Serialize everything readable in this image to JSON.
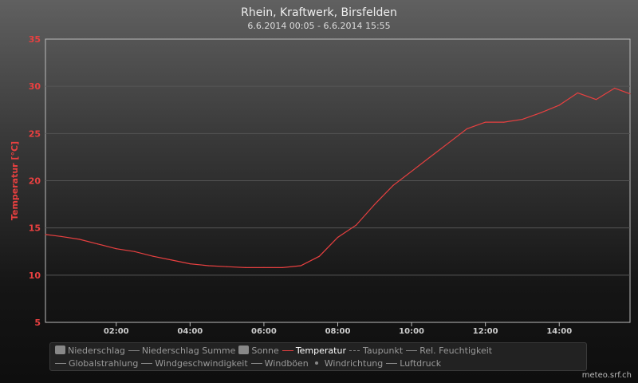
{
  "chart_data": {
    "type": "line",
    "title": "Rhein, Kraftwerk, Birsfelden",
    "subtitle": "6.6.2014 00:05 - 6.6.2014 15:55",
    "ylabel": "Temperatur [°C]",
    "ylim": [
      5,
      35
    ],
    "yticks": [
      "5",
      "10",
      "15",
      "20",
      "25",
      "30",
      "35"
    ],
    "xlim_hours": [
      0.083,
      15.917
    ],
    "xticks": [
      {
        "h": 2,
        "label": "02:00"
      },
      {
        "h": 4,
        "label": "04:00"
      },
      {
        "h": 6,
        "label": "06:00"
      },
      {
        "h": 8,
        "label": "08:00"
      },
      {
        "h": 10,
        "label": "10:00"
      },
      {
        "h": 12,
        "label": "12:00"
      },
      {
        "h": 14,
        "label": "14:00"
      }
    ],
    "grid": true,
    "series": [
      {
        "name": "Temperatur",
        "color": "#e84040",
        "x": [
          0.083,
          0.5,
          1,
          1.5,
          2,
          2.5,
          3,
          3.5,
          4,
          4.5,
          5,
          5.5,
          6,
          6.5,
          7,
          7.5,
          8,
          8.5,
          9,
          9.5,
          10,
          10.5,
          11,
          11.5,
          12,
          12.5,
          13,
          13.5,
          14,
          14.5,
          15,
          15.5,
          15.917
        ],
        "y": [
          14.3,
          14.1,
          13.8,
          13.3,
          12.8,
          12.5,
          12.0,
          11.6,
          11.2,
          11.0,
          10.9,
          10.8,
          10.8,
          10.8,
          11.0,
          12.0,
          14.0,
          15.3,
          17.5,
          19.5,
          21.0,
          22.5,
          24.0,
          25.5,
          26.2,
          26.2,
          26.5,
          27.2,
          28.0,
          29.3,
          28.6,
          29.8,
          29.2
        ]
      }
    ]
  },
  "legend": [
    {
      "label": "Niederschlag",
      "kind": "box",
      "active": false
    },
    {
      "label": "Niederschlag Summe",
      "kind": "line",
      "active": false
    },
    {
      "label": "Sonne",
      "kind": "box",
      "active": false
    },
    {
      "label": "Temperatur",
      "kind": "line",
      "active": true
    },
    {
      "label": "Taupunkt",
      "kind": "dash",
      "active": false
    },
    {
      "label": "Rel. Feuchtigkeit",
      "kind": "line",
      "active": false
    },
    {
      "label": "Globalstrahlung",
      "kind": "line",
      "active": false
    },
    {
      "label": "Windgeschwindigkeit",
      "kind": "line",
      "active": false
    },
    {
      "label": "Windböen",
      "kind": "line",
      "active": false
    },
    {
      "label": "Windrichtung",
      "kind": "dot",
      "active": false
    },
    {
      "label": "Luftdruck",
      "kind": "line",
      "active": false
    }
  ],
  "credit": "meteo.srf.ch"
}
